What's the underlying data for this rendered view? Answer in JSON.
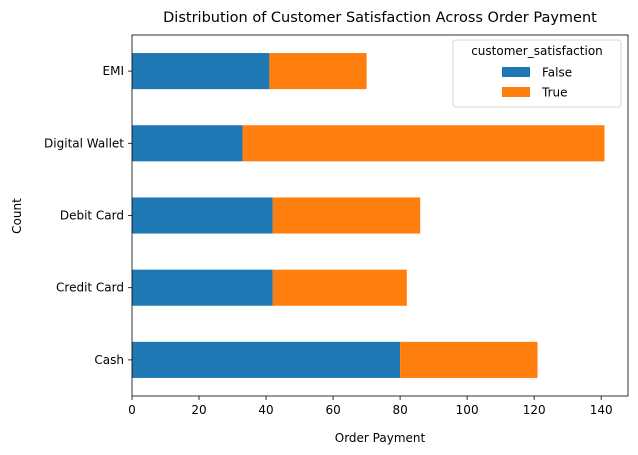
{
  "chart_data": {
    "type": "bar",
    "orientation": "horizontal",
    "stacked": true,
    "title": "Distribution of Customer Satisfaction Across Order Payment",
    "xlabel": "Order Payment",
    "ylabel": "Count",
    "categories": [
      "Cash",
      "Credit Card",
      "Debit Card",
      "Digital Wallet",
      "EMI"
    ],
    "series": [
      {
        "name": "False",
        "values": [
          80,
          42,
          42,
          33,
          41
        ],
        "color": "#1f77b4"
      },
      {
        "name": "True",
        "values": [
          41,
          40,
          44,
          108,
          29
        ],
        "color": "#ff7f0e"
      }
    ],
    "xlim": [
      0,
      148
    ],
    "xticks": [
      0,
      20,
      40,
      60,
      80,
      100,
      120,
      140
    ],
    "grid": false,
    "legend": {
      "title": "customer_satisfaction",
      "placement": "upper right"
    }
  }
}
